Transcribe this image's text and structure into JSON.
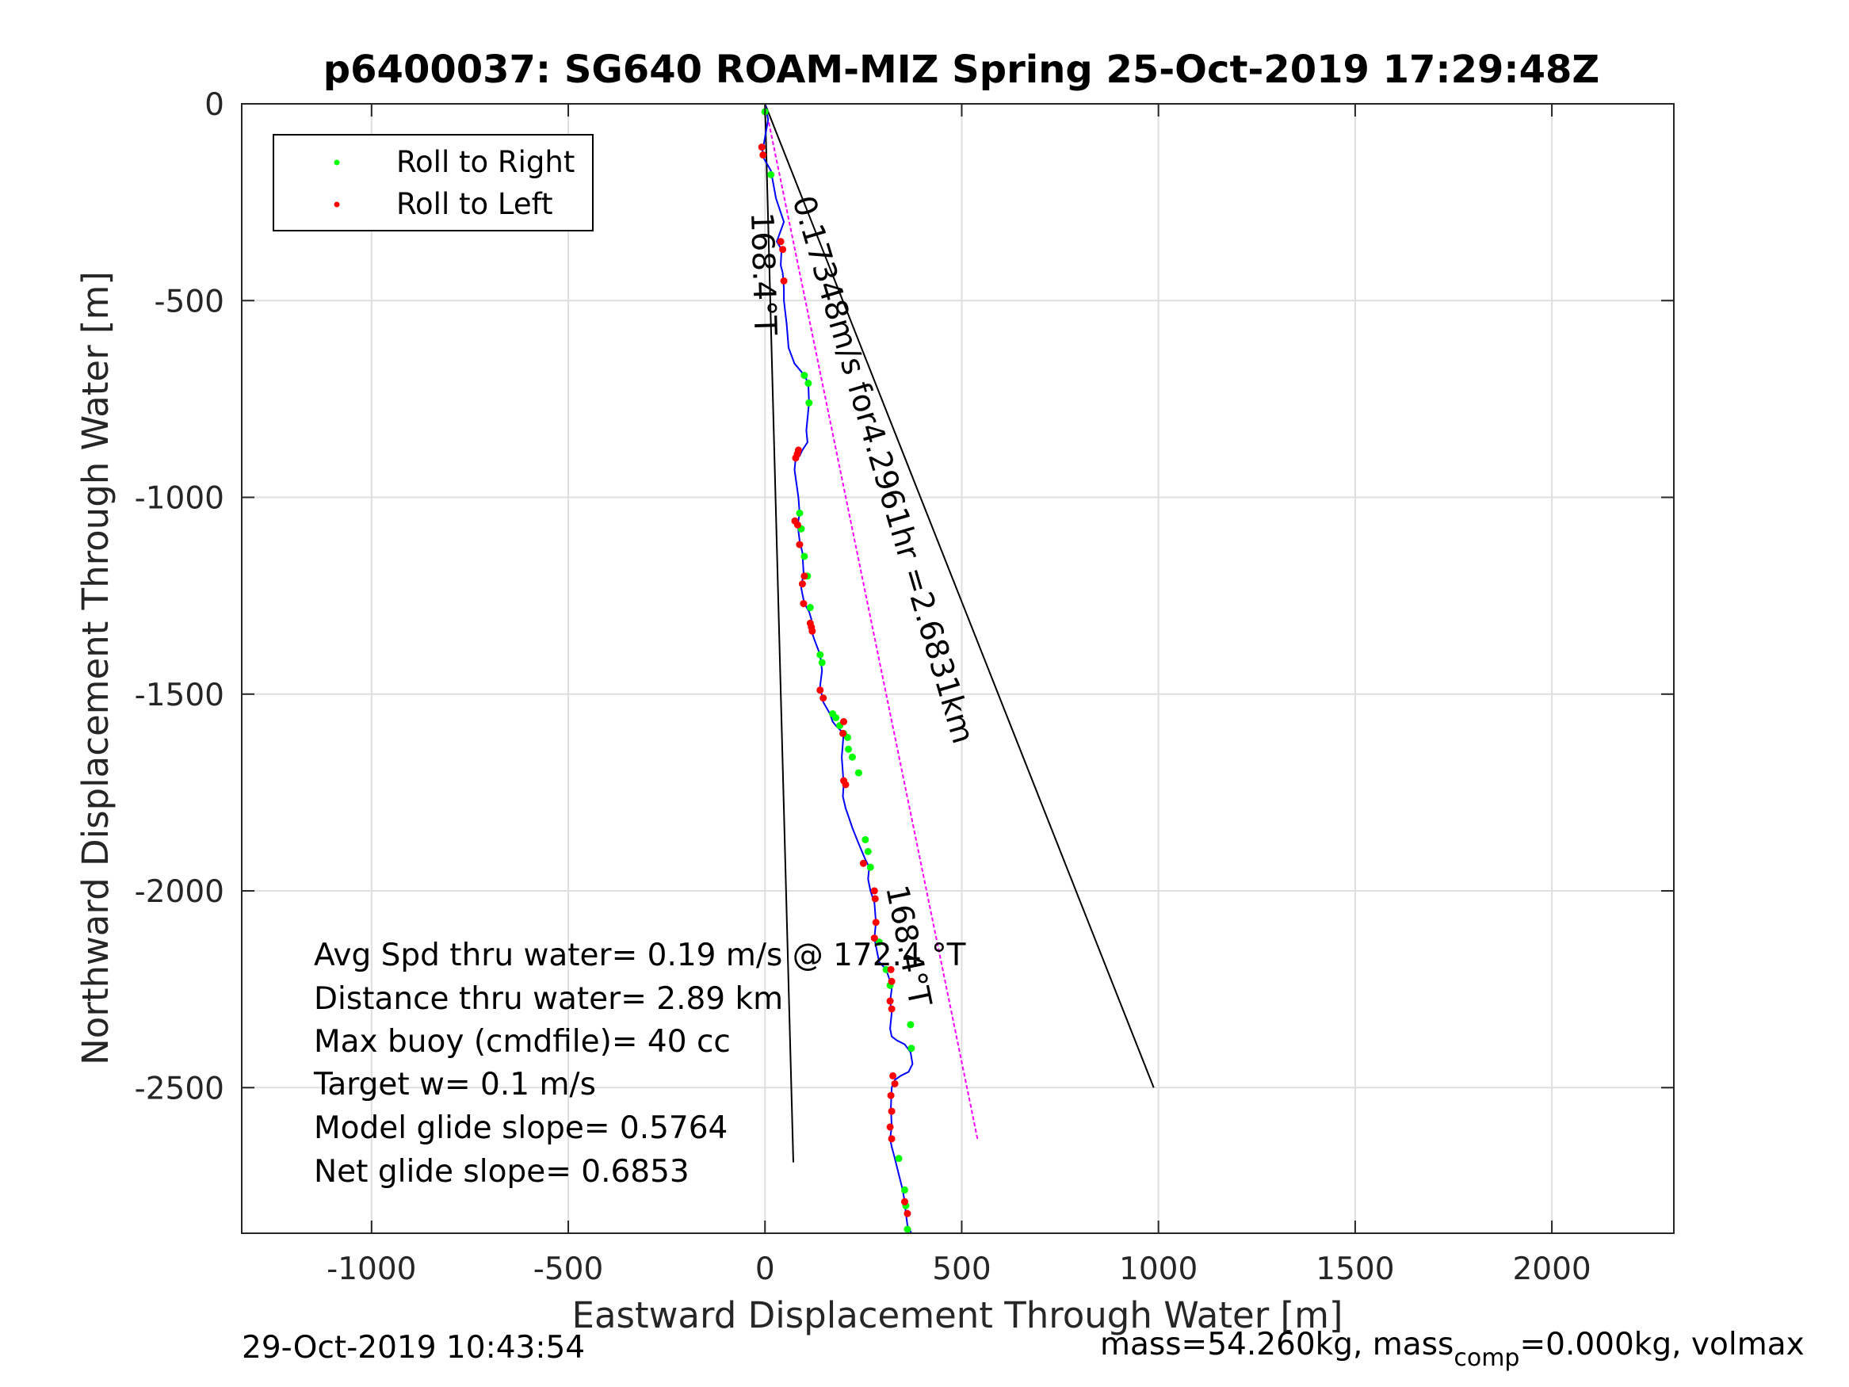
{
  "chart_data": {
    "type": "line",
    "title": "p6400037: SG640 ROAM-MIZ Spring 25-Oct-2019 17:29:48Z",
    "xlabel": "Eastward Displacement Through Water [m]",
    "ylabel": "Northward Displacement Through Water [m]",
    "xlim": [
      -1330,
      2310
    ],
    "ylim": [
      -2870,
      0
    ],
    "xticks": [
      -1000,
      -500,
      0,
      500,
      1000,
      1500,
      2000
    ],
    "xtick_labels": [
      "-1000",
      "-500",
      "0",
      "500",
      "1000",
      "1500",
      "2000"
    ],
    "yticks": [
      0,
      -500,
      -1000,
      -1500,
      -2000,
      -2500
    ],
    "ytick_labels": [
      "0",
      "-500",
      "-1000",
      "-1500",
      "-2000",
      "-2500"
    ],
    "grid": true,
    "legend_placement": "top-left",
    "legend": [
      {
        "label": "Roll to Right",
        "color": "#00ff00"
      },
      {
        "label": "Roll to Left",
        "color": "#ff0000"
      }
    ],
    "series": [
      {
        "name": "track",
        "color": "#0000ff",
        "x": [
          0,
          8,
          -8,
          15,
          28,
          48,
          30,
          42,
          40,
          45,
          48,
          48,
          55,
          60,
          75,
          100,
          110,
          112,
          105,
          108,
          95,
          88,
          78,
          75,
          85,
          88,
          83,
          88,
          95,
          98,
          92,
          100,
          112,
          118,
          115,
          125,
          140,
          145,
          140,
          148,
          165,
          172,
          180,
          190,
          200,
          195,
          198,
          200,
          198,
          205,
          212,
          222,
          238,
          255,
          265,
          262,
          268,
          278,
          282,
          278,
          282,
          290,
          308,
          318,
          322,
          318,
          322,
          318,
          322,
          335,
          355,
          370,
          375,
          365,
          345,
          330,
          322,
          320,
          322,
          318,
          322,
          330,
          340,
          350,
          355,
          358,
          362,
          372
        ],
        "y": [
          0,
          -40,
          -130,
          -170,
          -240,
          -300,
          -350,
          -370,
          -410,
          -430,
          -470,
          -500,
          -560,
          -620,
          -660,
          -690,
          -710,
          -760,
          -830,
          -860,
          -880,
          -895,
          -900,
          -930,
          -1000,
          -1040,
          -1070,
          -1110,
          -1140,
          -1190,
          -1230,
          -1270,
          -1290,
          -1310,
          -1330,
          -1360,
          -1400,
          -1440,
          -1480,
          -1520,
          -1550,
          -1570,
          -1580,
          -1590,
          -1600,
          -1660,
          -1700,
          -1730,
          -1760,
          -1790,
          -1810,
          -1840,
          -1880,
          -1920,
          -1940,
          -1970,
          -2000,
          -2030,
          -2080,
          -2120,
          -2140,
          -2180,
          -2200,
          -2230,
          -2250,
          -2280,
          -2310,
          -2350,
          -2370,
          -2380,
          -2390,
          -2410,
          -2440,
          -2460,
          -2470,
          -2480,
          -2500,
          -2550,
          -2600,
          -2630,
          -2650,
          -2680,
          -2720,
          -2760,
          -2790,
          -2820,
          -2850,
          -2870
        ]
      }
    ],
    "roll_right": {
      "x": [
        0,
        15,
        100,
        110,
        112,
        88,
        92,
        100,
        108,
        115,
        140,
        145,
        172,
        180,
        190,
        200,
        210,
        212,
        222,
        238,
        255,
        262,
        268,
        290,
        308,
        318,
        370,
        372,
        340,
        355,
        358,
        362
      ],
      "y": [
        -20,
        -180,
        -690,
        -710,
        -760,
        -1040,
        -1080,
        -1150,
        -1200,
        -1280,
        -1400,
        -1420,
        -1550,
        -1560,
        -1580,
        -1600,
        -1610,
        -1640,
        -1660,
        -1700,
        -1870,
        -1900,
        -1940,
        -2130,
        -2200,
        -2240,
        -2340,
        -2400,
        -2680,
        -2760,
        -2800,
        -2860
      ]
    },
    "roll_left": {
      "x": [
        -8,
        -5,
        40,
        45,
        48,
        85,
        82,
        78,
        76,
        83,
        88,
        100,
        95,
        98,
        115,
        118,
        120,
        140,
        148,
        200,
        198,
        200,
        205,
        250,
        278,
        280,
        282,
        278,
        320,
        322,
        318,
        322,
        325,
        330,
        320,
        322,
        318,
        322,
        355,
        362
      ],
      "y": [
        -110,
        -130,
        -350,
        -370,
        -450,
        -880,
        -890,
        -900,
        -1060,
        -1070,
        -1120,
        -1200,
        -1220,
        -1270,
        -1320,
        -1330,
        -1340,
        -1490,
        -1510,
        -1570,
        -1600,
        -1720,
        -1730,
        -1930,
        -2000,
        -2020,
        -2080,
        -2120,
        -2200,
        -2230,
        -2280,
        -2300,
        -2470,
        -2490,
        -2520,
        -2560,
        -2600,
        -2630,
        -2790,
        -2820
      ]
    },
    "reference_lines": [
      {
        "name": "168.4°T lower",
        "color": "#000000",
        "x": [
          0,
          72
        ],
        "y": [
          0,
          -2690
        ]
      },
      {
        "name": "avg velocity",
        "color": "#000000",
        "x": [
          0,
          988
        ],
        "y": [
          0,
          -2500
        ]
      },
      {
        "name": "168.4°T mid",
        "color": "#ff00ff",
        "x": [
          0,
          540
        ],
        "y": [
          0,
          -2630
        ]
      }
    ],
    "line_labels": [
      {
        "text": "0.17348m/s for4.2961hr =2.6831km"
      },
      {
        "text": "168.4°T"
      },
      {
        "text": "168.4°T"
      }
    ],
    "annotations": [
      "Avg Spd thru water=  0.19 m/s @ 172.4 °T",
      "Distance thru water=  2.89 km",
      "Max buoy (cmdfile)= 40 cc",
      "Target w= 0.1 m/s",
      "Model glide slope= 0.5764",
      "Net glide slope= 0.6853"
    ]
  },
  "footer": {
    "timestamp": "29-Oct-2019 10:43:54",
    "mass_prefix": "mass=54.260kg, mass",
    "mass_sub": "comp",
    "mass_suffix": "=0.000kg, volmax"
  }
}
